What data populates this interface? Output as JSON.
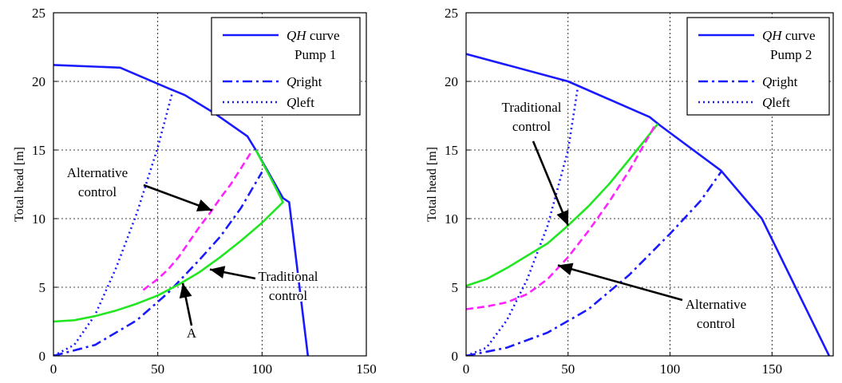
{
  "colors": {
    "qh": "#1a1aff",
    "qright": "#1a1aff",
    "qleft": "#1a1aff",
    "traditional": "#22e622",
    "alternative": "#ff22ff",
    "axis": "#000000",
    "grid": "#000000"
  },
  "chart_data": [
    {
      "type": "line",
      "xlim": [
        0,
        150
      ],
      "ylim": [
        0,
        25
      ],
      "xticks": [
        "0",
        "50",
        "100",
        "150"
      ],
      "yticks": [
        "0",
        "5",
        "10",
        "15",
        "20",
        "25"
      ],
      "ylabel": "Total head [m]",
      "xlabel": "",
      "grid": "on",
      "legend_position": "top-right",
      "legend": [
        {
          "label": "QH curve",
          "label2": "Pump 1",
          "style": "solid"
        },
        {
          "label": "Qright",
          "style": "dashdot"
        },
        {
          "label": "Qleft",
          "style": "dotted"
        }
      ],
      "series": [
        {
          "name": "QH curve Pump 1",
          "style": "solid",
          "color_key": "qh",
          "x": [
            0,
            32,
            55,
            63,
            77,
            93,
            97,
            110,
            113,
            122
          ],
          "y": [
            21.2,
            21.0,
            19.5,
            19.0,
            17.7,
            16.0,
            15.0,
            11.5,
            11.2,
            0
          ]
        },
        {
          "name": "Qright",
          "style": "dashdot",
          "color_key": "qright",
          "x": [
            0,
            20,
            40,
            55,
            70,
            80,
            90,
            100
          ],
          "y": [
            0,
            0.8,
            2.6,
            4.6,
            7.0,
            8.7,
            10.8,
            13.4
          ]
        },
        {
          "name": "Qleft",
          "style": "dotted",
          "color_key": "qleft",
          "x": [
            0,
            10,
            20,
            30,
            40,
            50,
            57
          ],
          "y": [
            0,
            0.8,
            3.0,
            6.4,
            10.4,
            15.2,
            19.2
          ]
        },
        {
          "name": "Traditional control",
          "style": "solid",
          "color_key": "traditional",
          "x": [
            0,
            10,
            20,
            30,
            40,
            50,
            60,
            70,
            80,
            90,
            100,
            110,
            104,
            97
          ],
          "y": [
            2.5,
            2.6,
            2.9,
            3.3,
            3.8,
            4.4,
            5.2,
            6.1,
            7.2,
            8.4,
            9.7,
            11.2,
            13.0,
            15.0
          ]
        },
        {
          "name": "Alternative control",
          "style": "dashed",
          "color_key": "alternative",
          "x": [
            43,
            50,
            55,
            60,
            65,
            70,
            75,
            80,
            85,
            90,
            95
          ],
          "y": [
            4.8,
            5.6,
            6.3,
            7.2,
            8.3,
            9.4,
            10.4,
            11.5,
            12.5,
            13.7,
            14.9
          ]
        }
      ],
      "annotations": [
        {
          "lines": [
            "Alternative",
            "control"
          ],
          "tx": 26,
          "ty": 12.8,
          "ax": 22,
          "ay": 18
        },
        {
          "lines": [
            "Traditional",
            "control"
          ],
          "tx": 118,
          "ty": 4.6,
          "ax": 80,
          "ay": 7.0
        },
        {
          "lines": [
            "A"
          ],
          "tx": 0,
          "ty": 0,
          "ax": 0,
          "ay": 0
        }
      ],
      "annotation_targets": [
        {
          "x": 76,
          "y": 10.6
        },
        {
          "x": 75,
          "y": 6.3
        },
        {
          "x": 62,
          "y": 5.3
        }
      ]
    },
    {
      "type": "line",
      "xlim": [
        0,
        180
      ],
      "ylim": [
        0,
        25
      ],
      "xticks": [
        "0",
        "50",
        "100",
        "150"
      ],
      "yticks": [
        "0",
        "5",
        "10",
        "15",
        "20",
        "25"
      ],
      "ylabel": "Total head [m]",
      "xlabel": "",
      "grid": "on",
      "legend_position": "top-right",
      "legend": [
        {
          "label": "QH curve",
          "label2": "Pump 2",
          "style": "solid"
        },
        {
          "label": "Qright",
          "style": "dashdot"
        },
        {
          "label": "Qleft",
          "style": "dotted"
        }
      ],
      "series": [
        {
          "name": "QH curve Pump 2",
          "style": "solid",
          "color_key": "qh",
          "x": [
            0,
            50,
            90,
            95,
            125,
            145,
            178
          ],
          "y": [
            22.0,
            20.0,
            17.4,
            16.8,
            13.5,
            10.0,
            0
          ]
        },
        {
          "name": "Qright",
          "style": "dashdot",
          "color_key": "qright",
          "x": [
            0,
            20,
            40,
            60,
            80,
            100,
            115,
            125
          ],
          "y": [
            0,
            0.6,
            1.7,
            3.4,
            5.9,
            8.9,
            11.3,
            13.4
          ]
        },
        {
          "name": "Qleft",
          "style": "dotted",
          "color_key": "qleft",
          "x": [
            0,
            10,
            20,
            30,
            40,
            50,
            55
          ],
          "y": [
            0,
            0.6,
            2.6,
            5.6,
            9.5,
            15.0,
            19.8
          ]
        },
        {
          "name": "Traditional control",
          "style": "solid",
          "color_key": "traditional",
          "x": [
            0,
            10,
            20,
            30,
            40,
            50,
            60,
            70,
            80,
            94
          ],
          "y": [
            5.1,
            5.6,
            6.4,
            7.3,
            8.2,
            9.5,
            10.9,
            12.5,
            14.3,
            16.9
          ]
        },
        {
          "name": "Alternative control",
          "style": "dashed",
          "color_key": "alternative",
          "x": [
            0,
            10,
            20,
            30,
            40,
            50,
            60,
            70,
            80,
            93
          ],
          "y": [
            3.4,
            3.6,
            3.9,
            4.5,
            5.6,
            7.2,
            9.1,
            11.2,
            13.5,
            16.9
          ]
        }
      ],
      "annotations": [
        {
          "lines": [
            "Traditional",
            "control"
          ],
          "tx": 0,
          "ty": 0,
          "ax": 0,
          "ay": 0
        },
        {
          "lines": [
            "Alternative",
            "control"
          ],
          "tx": 0,
          "ty": 0,
          "ax": 0,
          "ay": 0
        }
      ],
      "annotation_targets": [
        {
          "x": 50,
          "y": 9.5
        },
        {
          "x": 45,
          "y": 6.6
        }
      ]
    }
  ]
}
